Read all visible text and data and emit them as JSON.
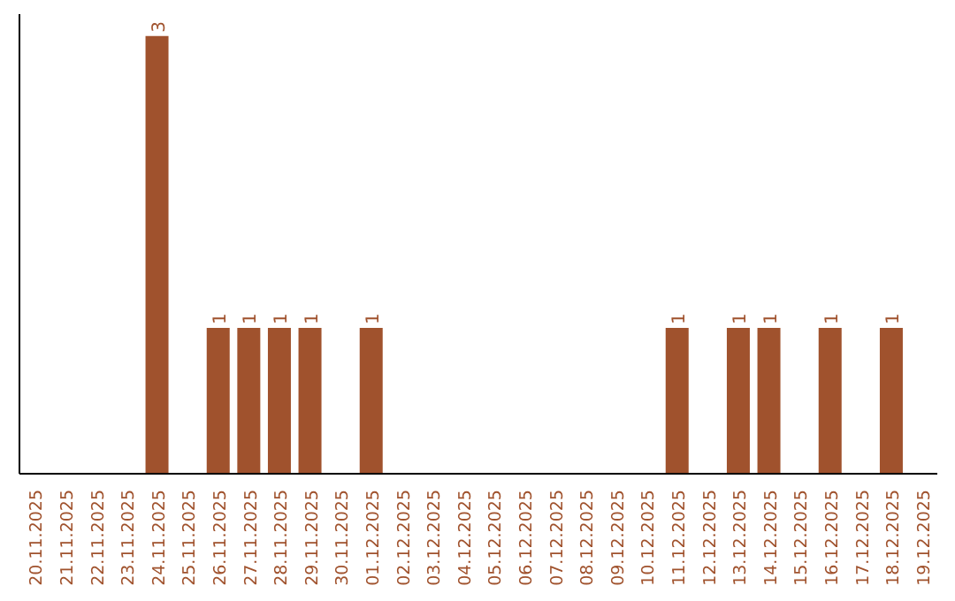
{
  "chart_data": {
    "type": "bar",
    "categories": [
      "20.11.2025",
      "21.11.2025",
      "22.11.2025",
      "23.11.2025",
      "24.11.2025",
      "25.11.2025",
      "26.11.2025",
      "27.11.2025",
      "28.11.2025",
      "29.11.2025",
      "30.11.2025",
      "01.12.2025",
      "02.12.2025",
      "03.12.2025",
      "04.12.2025",
      "05.12.2025",
      "06.12.2025",
      "07.12.2025",
      "08.12.2025",
      "09.12.2025",
      "10.12.2025",
      "11.12.2025",
      "12.12.2025",
      "13.12.2025",
      "14.12.2025",
      "15.12.2025",
      "16.12.2025",
      "17.12.2025",
      "18.12.2025",
      "19.12.2025"
    ],
    "values": [
      0,
      0,
      0,
      0,
      3,
      0,
      1,
      1,
      1,
      1,
      0,
      1,
      0,
      0,
      0,
      0,
      0,
      0,
      0,
      0,
      0,
      1,
      0,
      1,
      1,
      0,
      1,
      0,
      1,
      0
    ],
    "value_labels": [
      null,
      null,
      null,
      null,
      "3",
      null,
      "1",
      "1",
      "1",
      "1",
      null,
      "1",
      null,
      null,
      null,
      null,
      null,
      null,
      null,
      null,
      null,
      "1",
      null,
      "1",
      "1",
      null,
      "1",
      null,
      "1",
      null
    ],
    "color": "#a0522d",
    "ylim": [
      0,
      3.15
    ],
    "tick_labels": "x",
    "grid": false,
    "legend": false
  }
}
